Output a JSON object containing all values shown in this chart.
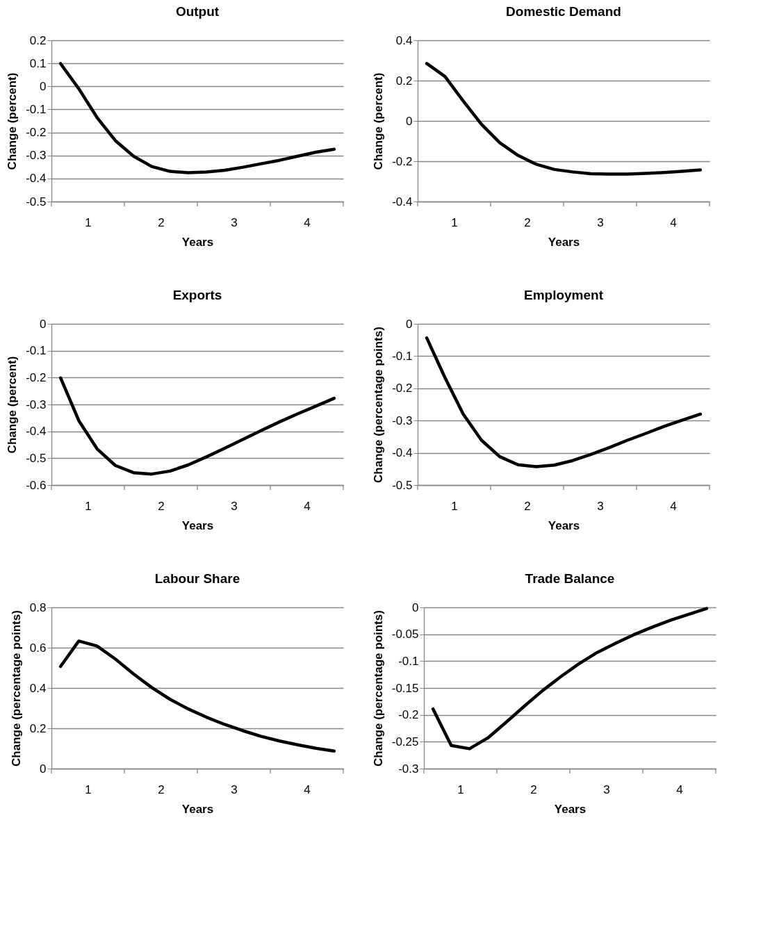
{
  "chart_data": [
    {
      "type": "line",
      "title": "Output",
      "xlabel": "Years",
      "ylabel": "Change (percent)",
      "color": "#000000",
      "grid": "y",
      "x": [
        0.625,
        0.875,
        1.125,
        1.375,
        1.625,
        1.875,
        2.125,
        2.375,
        2.625,
        2.875,
        3.125,
        3.375,
        3.625,
        3.875,
        4.125,
        4.375
      ],
      "values": [
        0.099,
        -0.01,
        -0.135,
        -0.235,
        -0.303,
        -0.348,
        -0.369,
        -0.375,
        -0.372,
        -0.364,
        -0.351,
        -0.336,
        -0.321,
        -0.303,
        -0.286,
        -0.273
      ],
      "xlim": [
        0.5,
        4.5
      ],
      "xticks": [
        {
          "value": 0.5,
          "label": null
        },
        1,
        {
          "value": 1.5,
          "label": null
        },
        2,
        {
          "value": 2.5,
          "label": null
        },
        3,
        {
          "value": 3.5,
          "label": null
        },
        4,
        {
          "value": 4.5,
          "label": null
        }
      ],
      "ylim": [
        -0.5,
        0.2
      ],
      "yticks": [
        -0.5,
        -0.4,
        -0.3,
        -0.2,
        -0.1,
        0,
        0.1,
        0.2
      ]
    },
    {
      "type": "line",
      "title": "Domestic Demand",
      "xlabel": "Years",
      "ylabel": "Change (percent)",
      "color": "#000000",
      "grid": "y",
      "x": [
        0.625,
        0.875,
        1.125,
        1.375,
        1.625,
        1.875,
        2.125,
        2.375,
        2.625,
        2.875,
        3.125,
        3.375,
        3.625,
        3.875,
        4.125,
        4.375
      ],
      "values": [
        0.285,
        0.22,
        0.099,
        -0.017,
        -0.108,
        -0.171,
        -0.215,
        -0.241,
        -0.253,
        -0.262,
        -0.264,
        -0.264,
        -0.26,
        -0.256,
        -0.25,
        -0.243
      ],
      "xlim": [
        0.5,
        4.5
      ],
      "xticks": [
        {
          "value": 0.5,
          "label": null
        },
        1,
        {
          "value": 1.5,
          "label": null
        },
        2,
        {
          "value": 2.5,
          "label": null
        },
        3,
        {
          "value": 3.5,
          "label": null
        },
        4,
        {
          "value": 4.5,
          "label": null
        }
      ],
      "ylim": [
        -0.4,
        0.4
      ],
      "yticks": [
        -0.4,
        -0.2,
        0,
        0.2,
        0.4
      ]
    },
    {
      "type": "line",
      "title": "Exports",
      "xlabel": "Years",
      "ylabel": "Change (percent)",
      "color": "#000000",
      "grid": "y",
      "x": [
        0.625,
        0.875,
        1.125,
        1.375,
        1.625,
        1.875,
        2.125,
        2.375,
        2.625,
        2.875,
        3.125,
        3.375,
        3.625,
        3.875,
        4.125,
        4.375
      ],
      "values": [
        -0.201,
        -0.36,
        -0.465,
        -0.527,
        -0.554,
        -0.559,
        -0.548,
        -0.525,
        -0.495,
        -0.463,
        -0.43,
        -0.397,
        -0.365,
        -0.335,
        -0.306,
        -0.277
      ],
      "xlim": [
        0.5,
        4.5
      ],
      "xticks": [
        {
          "value": 0.5,
          "label": null
        },
        1,
        {
          "value": 1.5,
          "label": null
        },
        2,
        {
          "value": 2.5,
          "label": null
        },
        3,
        {
          "value": 3.5,
          "label": null
        },
        4,
        {
          "value": 4.5,
          "label": null
        }
      ],
      "ylim": [
        -0.6,
        0
      ],
      "yticks": [
        -0.6,
        -0.5,
        -0.4,
        -0.3,
        -0.2,
        -0.1,
        0
      ]
    },
    {
      "type": "line",
      "title": "Employment",
      "xlabel": "Years",
      "ylabel": "Change (percentage points)",
      "color": "#000000",
      "grid": "y",
      "x": [
        0.625,
        0.875,
        1.125,
        1.375,
        1.625,
        1.875,
        2.125,
        2.375,
        2.625,
        2.875,
        3.125,
        3.375,
        3.625,
        3.875,
        4.125,
        4.375
      ],
      "values": [
        -0.044,
        -0.167,
        -0.28,
        -0.361,
        -0.412,
        -0.437,
        -0.443,
        -0.438,
        -0.424,
        -0.405,
        -0.384,
        -0.361,
        -0.34,
        -0.318,
        -0.299,
        -0.28
      ],
      "xlim": [
        0.5,
        4.5
      ],
      "xticks": [
        {
          "value": 0.5,
          "label": null
        },
        1,
        {
          "value": 1.5,
          "label": null
        },
        2,
        {
          "value": 2.5,
          "label": null
        },
        3,
        {
          "value": 3.5,
          "label": null
        },
        4,
        {
          "value": 4.5,
          "label": null
        }
      ],
      "ylim": [
        -0.5,
        0
      ],
      "yticks": [
        -0.5,
        -0.4,
        -0.3,
        -0.2,
        -0.1,
        0
      ]
    },
    {
      "type": "line",
      "title": "Labour Share",
      "xlabel": "Years",
      "ylabel": "Change (percentage points)",
      "color": "#000000",
      "grid": "y",
      "x": [
        0.625,
        0.875,
        1.125,
        1.375,
        1.625,
        1.875,
        2.125,
        2.375,
        2.625,
        2.875,
        3.125,
        3.375,
        3.625,
        3.875,
        4.125,
        4.375
      ],
      "values": [
        0.507,
        0.633,
        0.608,
        0.544,
        0.47,
        0.402,
        0.344,
        0.296,
        0.255,
        0.219,
        0.188,
        0.16,
        0.137,
        0.118,
        0.101,
        0.087
      ],
      "xlim": [
        0.5,
        4.5
      ],
      "xticks": [
        {
          "value": 0.5,
          "label": null
        },
        1,
        {
          "value": 1.5,
          "label": null
        },
        2,
        {
          "value": 2.5,
          "label": null
        },
        3,
        {
          "value": 3.5,
          "label": null
        },
        4,
        {
          "value": 4.5,
          "label": null
        }
      ],
      "ylim": [
        0,
        0.8
      ],
      "yticks": [
        0,
        0.2,
        0.4,
        0.6,
        0.8
      ]
    },
    {
      "type": "line",
      "title": "Trade Balance",
      "xlabel": "Years",
      "ylabel": "Change (percentage points)",
      "color": "#000000",
      "grid": "y",
      "x": [
        0.625,
        0.875,
        1.125,
        1.375,
        1.625,
        1.875,
        2.125,
        2.375,
        2.625,
        2.875,
        3.125,
        3.375,
        3.625,
        3.875,
        4.125,
        4.375
      ],
      "values": [
        -0.189,
        -0.257,
        -0.263,
        -0.243,
        -0.214,
        -0.184,
        -0.155,
        -0.129,
        -0.105,
        -0.084,
        -0.067,
        -0.051,
        -0.037,
        -0.024,
        -0.013,
        -0.002
      ],
      "xlim": [
        0.5,
        4.5
      ],
      "xticks": [
        {
          "value": 0.5,
          "label": null
        },
        1,
        {
          "value": 1.5,
          "label": null
        },
        2,
        {
          "value": 2.5,
          "label": null
        },
        3,
        {
          "value": 3.5,
          "label": null
        },
        4,
        {
          "value": 4.5,
          "label": null
        }
      ],
      "ylim": [
        -0.3,
        0
      ],
      "yticks": [
        -0.3,
        -0.25,
        -0.2,
        -0.15,
        -0.1,
        -0.05,
        0
      ]
    }
  ]
}
